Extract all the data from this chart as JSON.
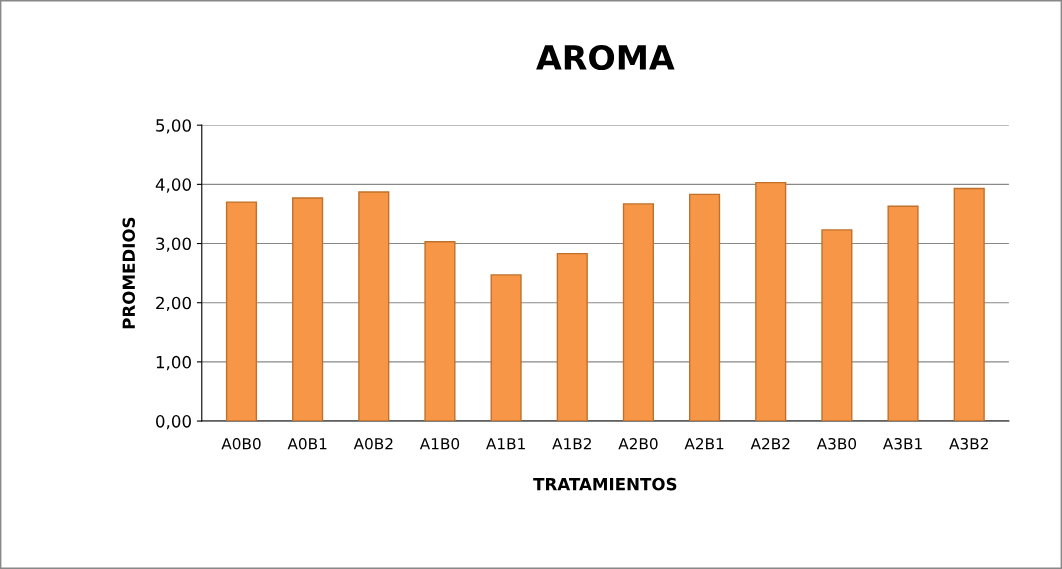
{
  "chart_data": {
    "type": "bar",
    "title": "AROMA",
    "xlabel": "TRATAMIENTOS",
    "ylabel": "PROMEDIOS",
    "categories": [
      "A0B0",
      "A0B1",
      "A0B2",
      "A1B0",
      "A1B1",
      "A1B2",
      "A2B0",
      "A2B1",
      "A2B2",
      "A3B0",
      "A3B1",
      "A3B2"
    ],
    "values": [
      3.7,
      3.77,
      3.87,
      3.03,
      2.47,
      2.83,
      3.67,
      3.83,
      4.03,
      3.23,
      3.63,
      3.93
    ],
    "color": "#f79646",
    "ylim": [
      0,
      5
    ],
    "yticks": [
      {
        "value": 0,
        "label": "0,00"
      },
      {
        "value": 1,
        "label": "1,00"
      },
      {
        "value": 2,
        "label": "2,00"
      },
      {
        "value": 3,
        "label": "3,00"
      },
      {
        "value": 4,
        "label": "4,00"
      },
      {
        "value": 5,
        "label": "5,00"
      }
    ],
    "grid": "y",
    "legend": false
  }
}
